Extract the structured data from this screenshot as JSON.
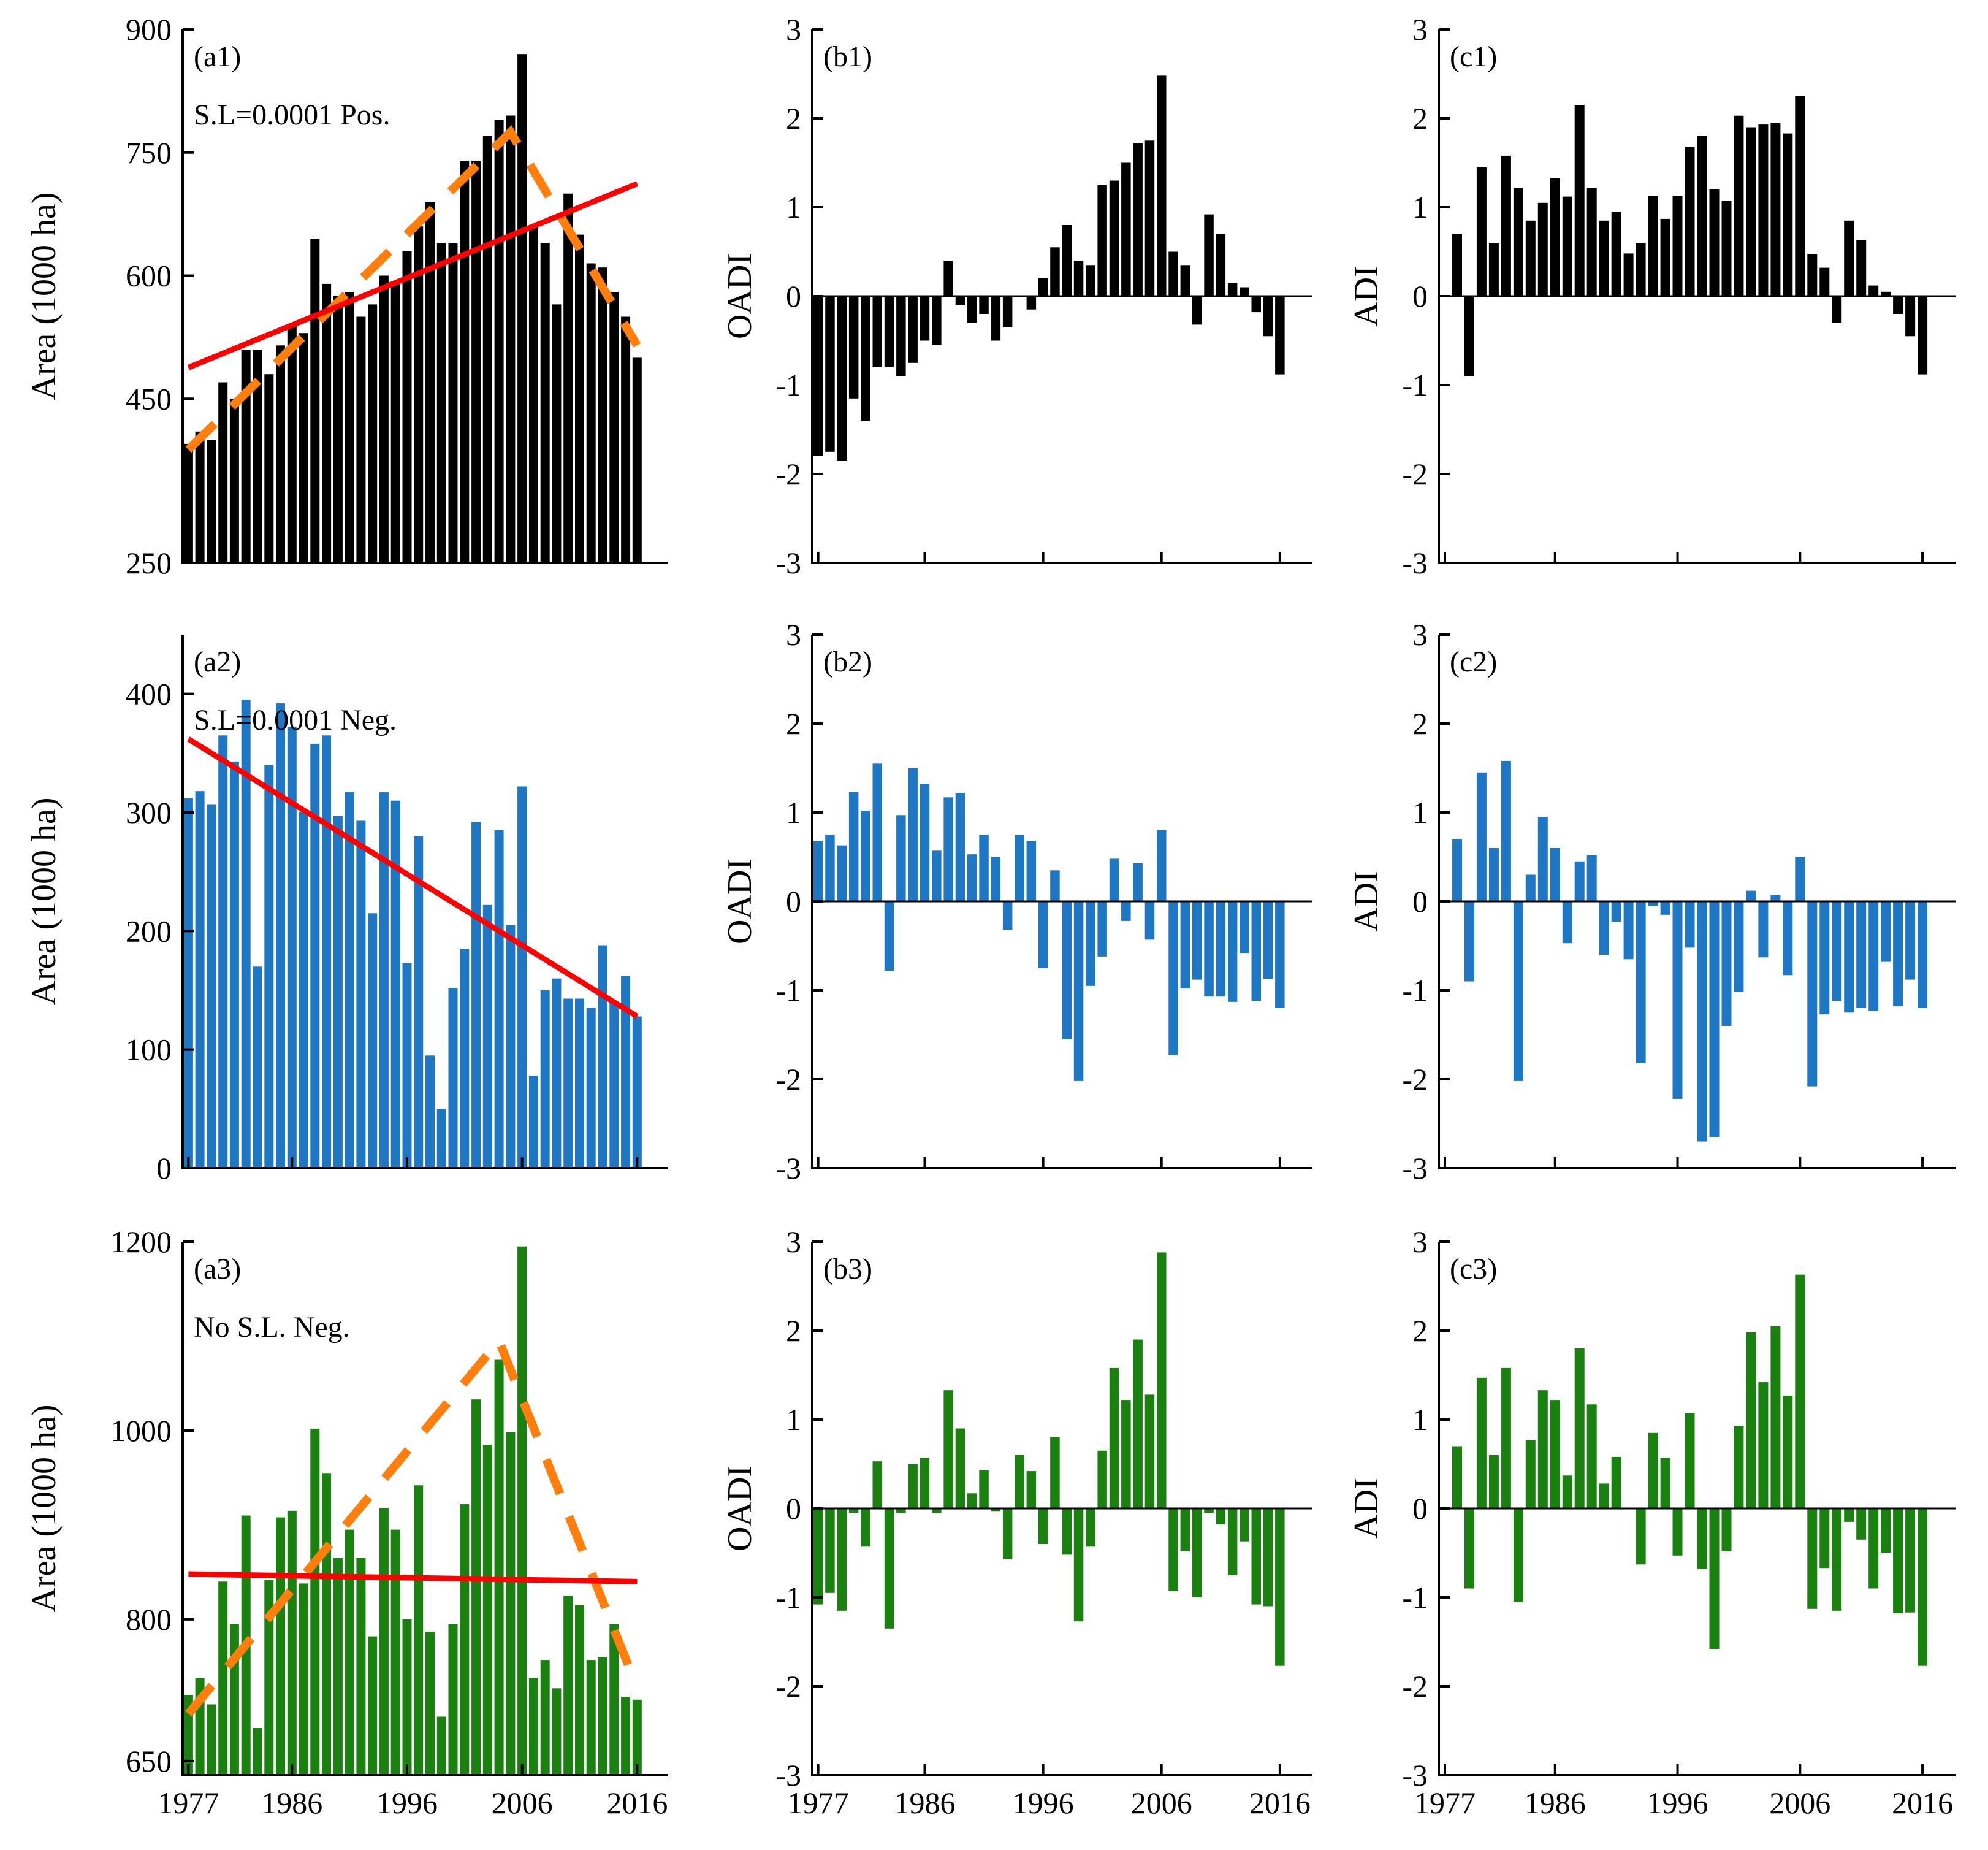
{
  "figure": {
    "x_tick_labels": [
      "1977",
      "1986",
      "1996",
      "2006",
      "2016"
    ],
    "x_ticks": [
      1977,
      1986,
      1996,
      2006,
      2016
    ]
  },
  "chart_data": [
    {
      "id": "a1",
      "type": "bar",
      "panel_label": "(a1)",
      "annotation": "S.L=0.0001  Pos.",
      "ylabel": "Area (1000 ha)",
      "ylim": [
        250,
        900
      ],
      "yticks": [
        250,
        450,
        600,
        750,
        900
      ],
      "ytick_labels": [
        "250",
        "450",
        "600",
        "750",
        "900"
      ],
      "color": "#000000",
      "x": [
        1977,
        1978,
        1979,
        1980,
        1981,
        1982,
        1983,
        1984,
        1985,
        1986,
        1987,
        1988,
        1989,
        1990,
        1991,
        1992,
        1993,
        1994,
        1995,
        1996,
        1997,
        1998,
        1999,
        2000,
        2001,
        2002,
        2003,
        2004,
        2005,
        2006,
        2007,
        2008,
        2009,
        2010,
        2011,
        2012,
        2013,
        2014,
        2015,
        2016
      ],
      "values": [
        395,
        410,
        400,
        470,
        450,
        510,
        510,
        480,
        515,
        540,
        530,
        645,
        590,
        575,
        580,
        550,
        565,
        600,
        590,
        630,
        660,
        690,
        640,
        640,
        740,
        740,
        770,
        790,
        795,
        870,
        660,
        640,
        565,
        700,
        650,
        615,
        610,
        580,
        550,
        500
      ],
      "trend_line": {
        "color": "#ff0000",
        "x": [
          1977,
          2016
        ],
        "y": [
          488,
          712
        ]
      },
      "piecewise_trend": {
        "color": "#ff7f0e",
        "style": "dashed",
        "x": [
          1977,
          2005,
          2016
        ],
        "y": [
          388,
          775,
          515
        ]
      }
    },
    {
      "id": "b1",
      "type": "bar",
      "panel_label": "(b1)",
      "ylabel": "OADI",
      "ylim": [
        -3,
        3
      ],
      "yticks": [
        -3,
        -2,
        -1,
        0,
        1,
        2,
        3
      ],
      "ytick_labels": [
        "-3",
        "-2",
        "-1",
        "0",
        "1",
        "2",
        "3"
      ],
      "color": "#000000",
      "x": [
        1977,
        1978,
        1979,
        1980,
        1981,
        1982,
        1983,
        1984,
        1985,
        1986,
        1987,
        1988,
        1989,
        1990,
        1991,
        1992,
        1993,
        1994,
        1995,
        1996,
        1997,
        1998,
        1999,
        2000,
        2001,
        2002,
        2003,
        2004,
        2005,
        2006,
        2007,
        2008,
        2009,
        2010,
        2011,
        2012,
        2013,
        2014,
        2015,
        2016
      ],
      "values": [
        -1.8,
        -1.75,
        -1.85,
        -1.15,
        -1.4,
        -0.8,
        -0.8,
        -0.9,
        -0.75,
        -0.5,
        -0.55,
        0.4,
        -0.1,
        -0.3,
        -0.2,
        -0.5,
        -0.35,
        0.0,
        -0.15,
        0.2,
        0.55,
        0.8,
        0.4,
        0.35,
        1.25,
        1.3,
        1.5,
        1.72,
        1.75,
        2.48,
        0.5,
        0.35,
        -0.32,
        0.92,
        0.7,
        0.15,
        0.1,
        -0.18,
        -0.45,
        -0.88
      ]
    },
    {
      "id": "c1",
      "type": "bar",
      "panel_label": "(c1)",
      "ylabel": "ADI",
      "ylim": [
        -3,
        3
      ],
      "yticks": [
        -3,
        -2,
        -1,
        0,
        1,
        2,
        3
      ],
      "ytick_labels": [
        "-3",
        "-2",
        "-1",
        "0",
        "1",
        "2",
        "3"
      ],
      "color": "#000000",
      "x": [
        1977,
        1978,
        1979,
        1980,
        1981,
        1982,
        1983,
        1984,
        1985,
        1986,
        1987,
        1988,
        1989,
        1990,
        1991,
        1992,
        1993,
        1994,
        1995,
        1996,
        1997,
        1998,
        1999,
        2000,
        2001,
        2002,
        2003,
        2004,
        2005,
        2006,
        2007,
        2008,
        2009,
        2010,
        2011,
        2012,
        2013,
        2014,
        2015,
        2016
      ],
      "values": [
        0,
        0.7,
        -0.9,
        1.45,
        0.6,
        1.58,
        1.22,
        0.85,
        1.05,
        1.33,
        1.12,
        2.15,
        1.22,
        0.85,
        0.95,
        0.48,
        0.6,
        1.13,
        0.87,
        1.13,
        1.68,
        1.8,
        1.2,
        1.07,
        2.03,
        1.9,
        1.93,
        1.95,
        1.83,
        2.25,
        0.47,
        0.32,
        -0.3,
        0.85,
        0.63,
        0.12,
        0.05,
        -0.2,
        -0.45,
        -0.88
      ]
    },
    {
      "id": "a2",
      "type": "bar",
      "panel_label": "(a2)",
      "annotation": "S.L=0.0001  Neg.",
      "ylabel": "Area (1000 ha)",
      "ylim": [
        0,
        450
      ],
      "yticks": [
        0,
        100,
        200,
        300,
        400
      ],
      "ytick_labels": [
        "0",
        "100",
        "200",
        "300",
        "400"
      ],
      "color": "#1f77c4",
      "x": [
        1977,
        1978,
        1979,
        1980,
        1981,
        1982,
        1983,
        1984,
        1985,
        1986,
        1987,
        1988,
        1989,
        1990,
        1991,
        1992,
        1993,
        1994,
        1995,
        1996,
        1997,
        1998,
        1999,
        2000,
        2001,
        2002,
        2003,
        2004,
        2005,
        2006,
        2007,
        2008,
        2009,
        2010,
        2011,
        2012,
        2013,
        2014,
        2015,
        2016
      ],
      "values": [
        312,
        318,
        307,
        365,
        343,
        395,
        170,
        340,
        392,
        372,
        300,
        358,
        365,
        297,
        317,
        293,
        215,
        317,
        310,
        173,
        280,
        95,
        50,
        152,
        185,
        292,
        222,
        285,
        205,
        322,
        78,
        150,
        160,
        143,
        143,
        135,
        188,
        140,
        162,
        128
      ],
      "trend_line": {
        "color": "#ff0000",
        "x": [
          1977,
          2016
        ],
        "y": [
          362,
          128
        ]
      }
    },
    {
      "id": "b2",
      "type": "bar",
      "panel_label": "(b2)",
      "ylabel": "OADI",
      "ylim": [
        -3,
        3
      ],
      "yticks": [
        -3,
        -2,
        -1,
        0,
        1,
        2,
        3
      ],
      "ytick_labels": [
        "-3",
        "-2",
        "-1",
        "0",
        "1",
        "2",
        "3"
      ],
      "color": "#1f77c4",
      "x": [
        1977,
        1978,
        1979,
        1980,
        1981,
        1982,
        1983,
        1984,
        1985,
        1986,
        1987,
        1988,
        1989,
        1990,
        1991,
        1992,
        1993,
        1994,
        1995,
        1996,
        1997,
        1998,
        1999,
        2000,
        2001,
        2002,
        2003,
        2004,
        2005,
        2006,
        2007,
        2008,
        2009,
        2010,
        2011,
        2012,
        2013,
        2014,
        2015,
        2016
      ],
      "values": [
        0.68,
        0.75,
        0.63,
        1.23,
        1.02,
        1.55,
        -0.78,
        0.97,
        1.5,
        1.32,
        0.57,
        1.17,
        1.22,
        0.53,
        0.75,
        0.5,
        -0.32,
        0.75,
        0.68,
        -0.75,
        0.35,
        -1.55,
        -2.02,
        -0.95,
        -0.62,
        0.48,
        -0.22,
        0.43,
        -0.43,
        0.8,
        -1.73,
        -0.98,
        -0.88,
        -1.07,
        -1.07,
        -1.13,
        -0.58,
        -1.12,
        -0.87,
        -1.2
      ]
    },
    {
      "id": "c2",
      "type": "bar",
      "panel_label": "(c2)",
      "ylabel": "ADI",
      "ylim": [
        -3,
        3
      ],
      "yticks": [
        -3,
        -2,
        -1,
        0,
        1,
        2,
        3
      ],
      "ytick_labels": [
        "-3",
        "-2",
        "-1",
        "0",
        "1",
        "2",
        "3"
      ],
      "color": "#1f77c4",
      "x": [
        1977,
        1978,
        1979,
        1980,
        1981,
        1982,
        1983,
        1984,
        1985,
        1986,
        1987,
        1988,
        1989,
        1990,
        1991,
        1992,
        1993,
        1994,
        1995,
        1996,
        1997,
        1998,
        1999,
        2000,
        2001,
        2002,
        2003,
        2004,
        2005,
        2006,
        2007,
        2008,
        2009,
        2010,
        2011,
        2012,
        2013,
        2014,
        2015,
        2016
      ],
      "values": [
        0,
        0.7,
        -0.9,
        1.45,
        0.6,
        1.58,
        -2.02,
        0.3,
        0.95,
        0.6,
        -0.47,
        0.45,
        0.52,
        -0.6,
        -0.23,
        -0.65,
        -1.82,
        -0.05,
        -0.15,
        -2.22,
        -0.52,
        -2.7,
        -2.65,
        -1.4,
        -1.02,
        0.12,
        -0.63,
        0.07,
        -0.83,
        0.5,
        -2.08,
        -1.27,
        -1.12,
        -1.25,
        -1.2,
        -1.23,
        -0.68,
        -1.18,
        -0.88,
        -1.2
      ]
    },
    {
      "id": "a3",
      "type": "bar",
      "panel_label": "(a3)",
      "annotation": "No S.L. Neg.",
      "ylabel": "Area (1000 ha)",
      "ylim": [
        635,
        1200
      ],
      "yticks": [
        650,
        800,
        1000,
        1200
      ],
      "ytick_labels": [
        "650",
        "800",
        "1000",
        "1200"
      ],
      "color": "#1a8010",
      "x": [
        1977,
        1978,
        1979,
        1980,
        1981,
        1982,
        1983,
        1984,
        1985,
        1986,
        1987,
        1988,
        1989,
        1990,
        1991,
        1992,
        1993,
        1994,
        1995,
        1996,
        1997,
        1998,
        1999,
        2000,
        2001,
        2002,
        2003,
        2004,
        2005,
        2006,
        2007,
        2008,
        2009,
        2010,
        2011,
        2012,
        2013,
        2014,
        2015,
        2016
      ],
      "values": [
        720,
        738,
        710,
        840,
        795,
        910,
        685,
        842,
        908,
        915,
        838,
        1002,
        955,
        865,
        895,
        865,
        782,
        918,
        895,
        800,
        942,
        787,
        697,
        795,
        922,
        1033,
        985,
        1075,
        998,
        1195,
        738,
        757,
        727,
        825,
        815,
        757,
        760,
        795,
        718,
        715
      ],
      "trend_line": {
        "color": "#ff0000",
        "x": [
          1977,
          2016
        ],
        "y": [
          848,
          840
        ]
      },
      "piecewise_trend": {
        "color": "#ff7f0e",
        "style": "dashed",
        "x": [
          1977,
          2004,
          2016
        ],
        "y": [
          700,
          1095,
          728
        ]
      }
    },
    {
      "id": "b3",
      "type": "bar",
      "panel_label": "(b3)",
      "ylabel": "OADI",
      "ylim": [
        -3,
        3
      ],
      "yticks": [
        -3,
        -2,
        -1,
        0,
        1,
        2,
        3
      ],
      "ytick_labels": [
        "-3",
        "-2",
        "-1",
        "0",
        "1",
        "2",
        "3"
      ],
      "color": "#1a8010",
      "x": [
        1977,
        1978,
        1979,
        1980,
        1981,
        1982,
        1983,
        1984,
        1985,
        1986,
        1987,
        1988,
        1989,
        1990,
        1991,
        1992,
        1993,
        1994,
        1995,
        1996,
        1997,
        1998,
        1999,
        2000,
        2001,
        2002,
        2003,
        2004,
        2005,
        2006,
        2007,
        2008,
        2009,
        2010,
        2011,
        2012,
        2013,
        2014,
        2015,
        2016
      ],
      "values": [
        -1.08,
        -0.95,
        -1.15,
        -0.05,
        -0.43,
        0.53,
        -1.35,
        -0.05,
        0.5,
        0.57,
        -0.05,
        1.33,
        0.9,
        0.17,
        0.43,
        -0.03,
        -0.57,
        0.6,
        0.42,
        -0.4,
        0.8,
        -0.52,
        -1.27,
        -0.43,
        0.65,
        1.58,
        1.22,
        1.9,
        1.28,
        2.88,
        -0.93,
        -0.48,
        -1.0,
        -0.05,
        -0.18,
        -0.75,
        -0.37,
        -1.08,
        -1.1,
        -1.77
      ]
    },
    {
      "id": "c3",
      "type": "bar",
      "panel_label": "(c3)",
      "ylabel": "ADI",
      "ylim": [
        -3,
        3
      ],
      "yticks": [
        -3,
        -2,
        -1,
        0,
        1,
        2,
        3
      ],
      "ytick_labels": [
        "-3",
        "-2",
        "-1",
        "0",
        "1",
        "2",
        "3"
      ],
      "color": "#1a8010",
      "x": [
        1977,
        1978,
        1979,
        1980,
        1981,
        1982,
        1983,
        1984,
        1985,
        1986,
        1987,
        1988,
        1989,
        1990,
        1991,
        1992,
        1993,
        1994,
        1995,
        1996,
        1997,
        1998,
        1999,
        2000,
        2001,
        2002,
        2003,
        2004,
        2005,
        2006,
        2007,
        2008,
        2009,
        2010,
        2011,
        2012,
        2013,
        2014,
        2015,
        2016
      ],
      "values": [
        0,
        0.7,
        -0.9,
        1.47,
        0.6,
        1.58,
        -1.05,
        0.77,
        1.33,
        1.22,
        0.37,
        1.8,
        1.17,
        0.28,
        0.58,
        0.0,
        -0.63,
        0.85,
        0.57,
        -0.53,
        1.07,
        -0.68,
        -1.58,
        -0.48,
        0.93,
        1.98,
        1.42,
        2.05,
        1.27,
        2.63,
        -1.13,
        -0.67,
        -1.15,
        -0.15,
        -0.35,
        -0.9,
        -0.5,
        -1.18,
        -1.17,
        -1.77
      ]
    }
  ]
}
